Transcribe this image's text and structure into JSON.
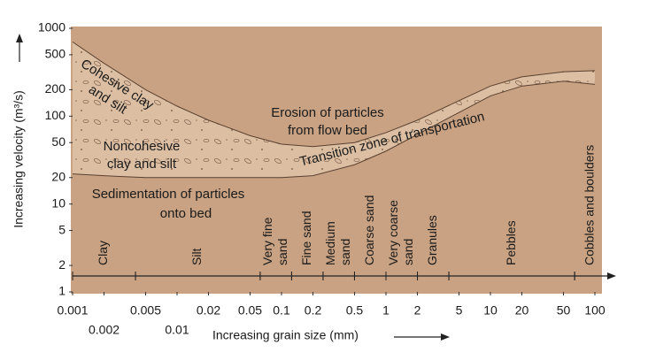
{
  "chart_data": {
    "type": "band",
    "y_label": "Increasing velocity (m³/s)",
    "x_label": "Increasing grain size (mm)",
    "log_x": true,
    "log_y": true,
    "xlim": [
      0.001,
      100
    ],
    "ylim": [
      1,
      1000
    ],
    "xticks": [
      0.001,
      0.002,
      0.005,
      0.01,
      0.02,
      0.05,
      0.1,
      0.2,
      0.5,
      1,
      2,
      5,
      10,
      20,
      50,
      100
    ],
    "yticks": [
      1,
      2,
      5,
      10,
      20,
      50,
      100,
      200,
      500,
      1000
    ],
    "x": [
      0.001,
      0.002,
      0.005,
      0.01,
      0.02,
      0.05,
      0.1,
      0.2,
      0.5,
      1,
      2,
      5,
      10,
      20,
      50,
      100
    ],
    "series": [
      {
        "name": "Erosion threshold",
        "color": "#5a4030",
        "values": [
          700,
          400,
          200,
          130,
          90,
          60,
          48,
          45,
          50,
          65,
          90,
          150,
          220,
          280,
          320,
          330
        ]
      },
      {
        "name": "Deposition threshold",
        "color": "#5a4030",
        "values": [
          22,
          21,
          20,
          20,
          20,
          20,
          20,
          21,
          28,
          40,
          62,
          110,
          170,
          220,
          250,
          230
        ]
      }
    ],
    "band_color": "#dcbfa3",
    "background_color": "#c8a282",
    "annotations": [
      {
        "text": [
          "Cohesive clay",
          "and silt"
        ]
      },
      {
        "text": [
          "Noncohesive",
          "clay and silt"
        ]
      },
      {
        "text": [
          "Erosion of particles",
          "from flow bed"
        ]
      },
      {
        "text": [
          "Transition zone of transportation"
        ]
      },
      {
        "text": [
          "Sedimentation of particles",
          "onto bed"
        ]
      }
    ],
    "classes": [
      {
        "name": [
          "Clay"
        ],
        "from": 0.001,
        "to": 0.004
      },
      {
        "name": [
          "Silt"
        ],
        "from": 0.004,
        "to": 0.0625
      },
      {
        "name": [
          "Very fine",
          "sand"
        ],
        "from": 0.0625,
        "to": 0.125
      },
      {
        "name": [
          "Fine sand"
        ],
        "from": 0.125,
        "to": 0.25
      },
      {
        "name": [
          "Medium",
          "sand"
        ],
        "from": 0.25,
        "to": 0.5
      },
      {
        "name": [
          "Coarse sand"
        ],
        "from": 0.5,
        "to": 1
      },
      {
        "name": [
          "Very coarse",
          "sand"
        ],
        "from": 1,
        "to": 2
      },
      {
        "name": [
          "Granules"
        ],
        "from": 2,
        "to": 4
      },
      {
        "name": [
          "Pebbles"
        ],
        "from": 4,
        "to": 64
      },
      {
        "name": [
          "Cobbles and boulders"
        ],
        "from": 64,
        "to": null
      }
    ]
  }
}
